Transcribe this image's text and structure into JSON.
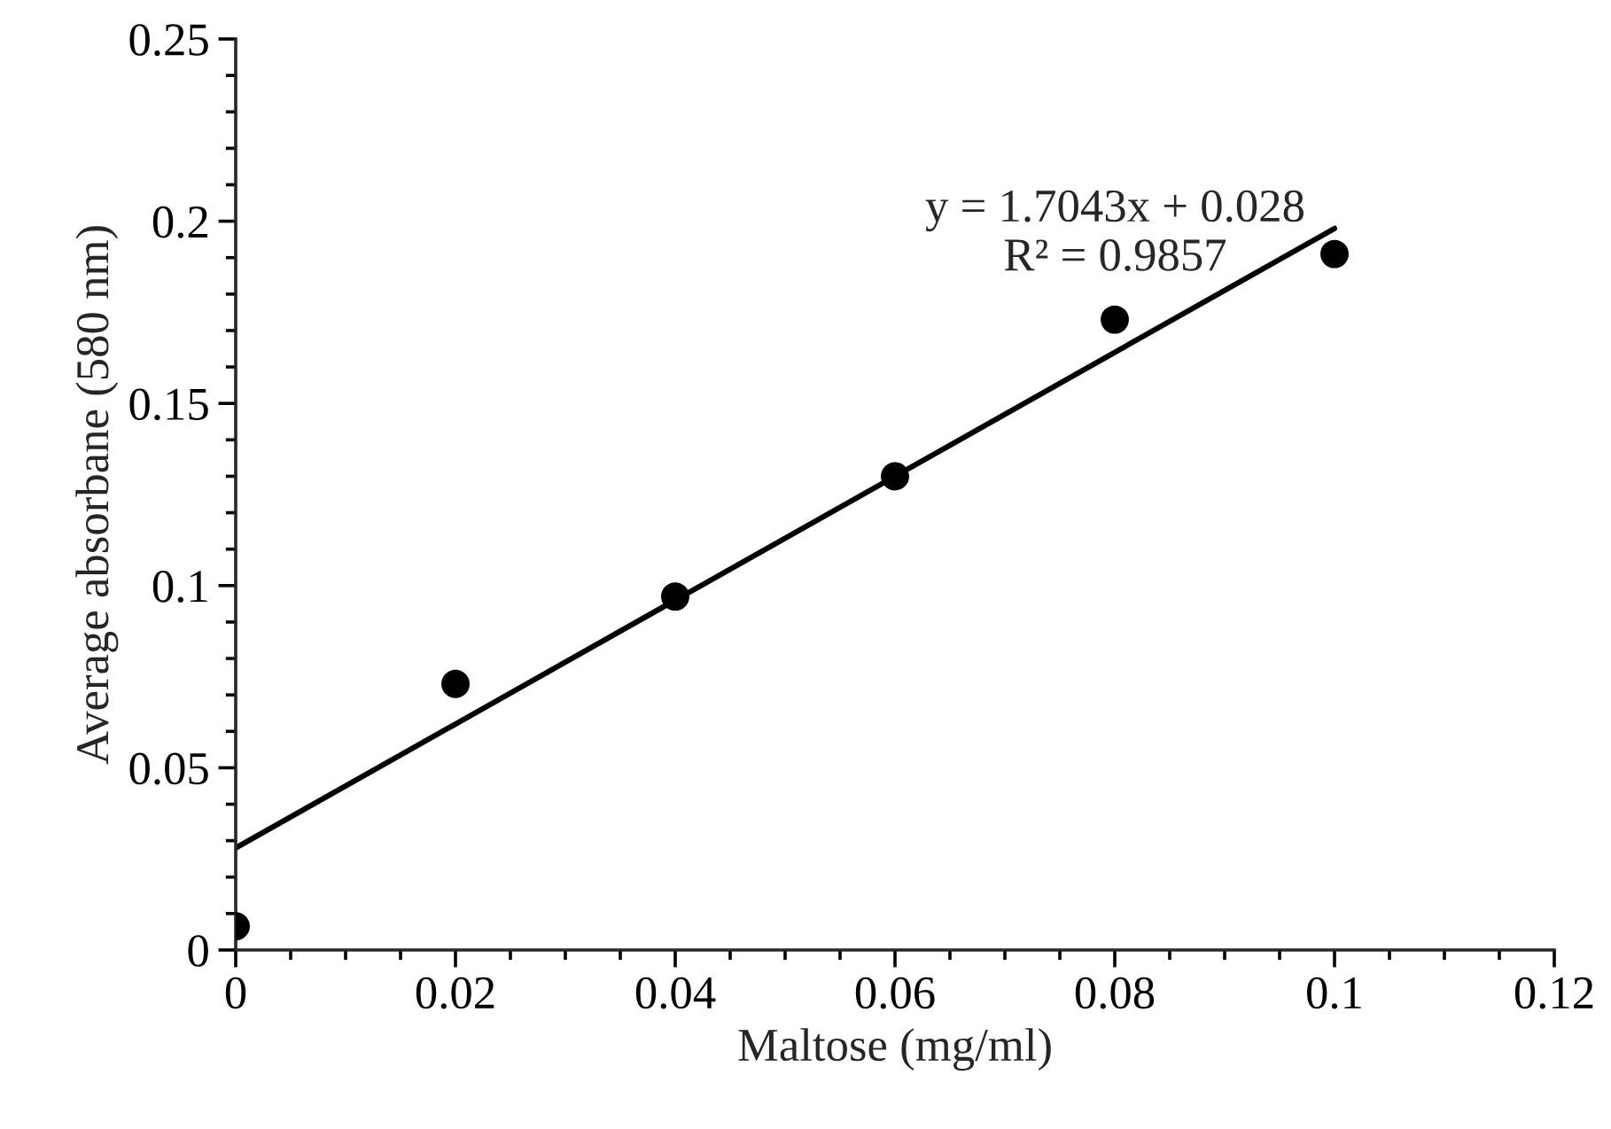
{
  "chart_data": {
    "type": "scatter",
    "xlabel": "Maltose (mg/ml)",
    "ylabel": "Average absorbane (580 nm)",
    "xlim": [
      0,
      0.12
    ],
    "xticks": [
      0,
      0.02,
      0.04,
      0.06,
      0.08,
      0.1,
      0.12
    ],
    "ylim": [
      0,
      0.25
    ],
    "yticks": [
      0,
      0.05,
      0.1,
      0.15,
      0.2,
      0.25
    ],
    "series": [
      {
        "color": "#000000",
        "marker": "circle",
        "x": [
          0,
          0.02,
          0.04,
          0.06,
          0.08,
          0.1
        ],
        "values": [
          0.0065,
          0.073,
          0.097,
          0.13,
          0.173,
          0.191
        ]
      },
      {
        "type": "line",
        "color": "#000000",
        "marker": "none",
        "line_style": "solid",
        "x": [
          0,
          0.1
        ],
        "values": [
          0.028,
          0.198
        ]
      }
    ],
    "annotations": [
      "y = 1.7043x + 0.028\nR² = 0.9857"
    ],
    "grid": false,
    "legend": false
  }
}
